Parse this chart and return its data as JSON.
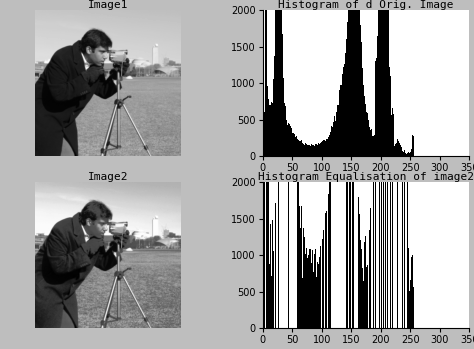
{
  "title1": "Image1",
  "title2": "Image2",
  "hist_title1": "Histogram of d Orig. Image",
  "hist_title2": "Histogram Equalisation of image2",
  "xlim": [
    0,
    350
  ],
  "ylim": [
    0,
    2000
  ],
  "xticks": [
    0,
    50,
    100,
    150,
    200,
    250,
    300,
    350
  ],
  "yticks": [
    0,
    500,
    1000,
    1500,
    2000
  ],
  "background_color": "#bebebe",
  "plot_bg": "#ffffff",
  "title_fontsize": 8,
  "tick_fontsize": 7,
  "label_fontsize": 7
}
